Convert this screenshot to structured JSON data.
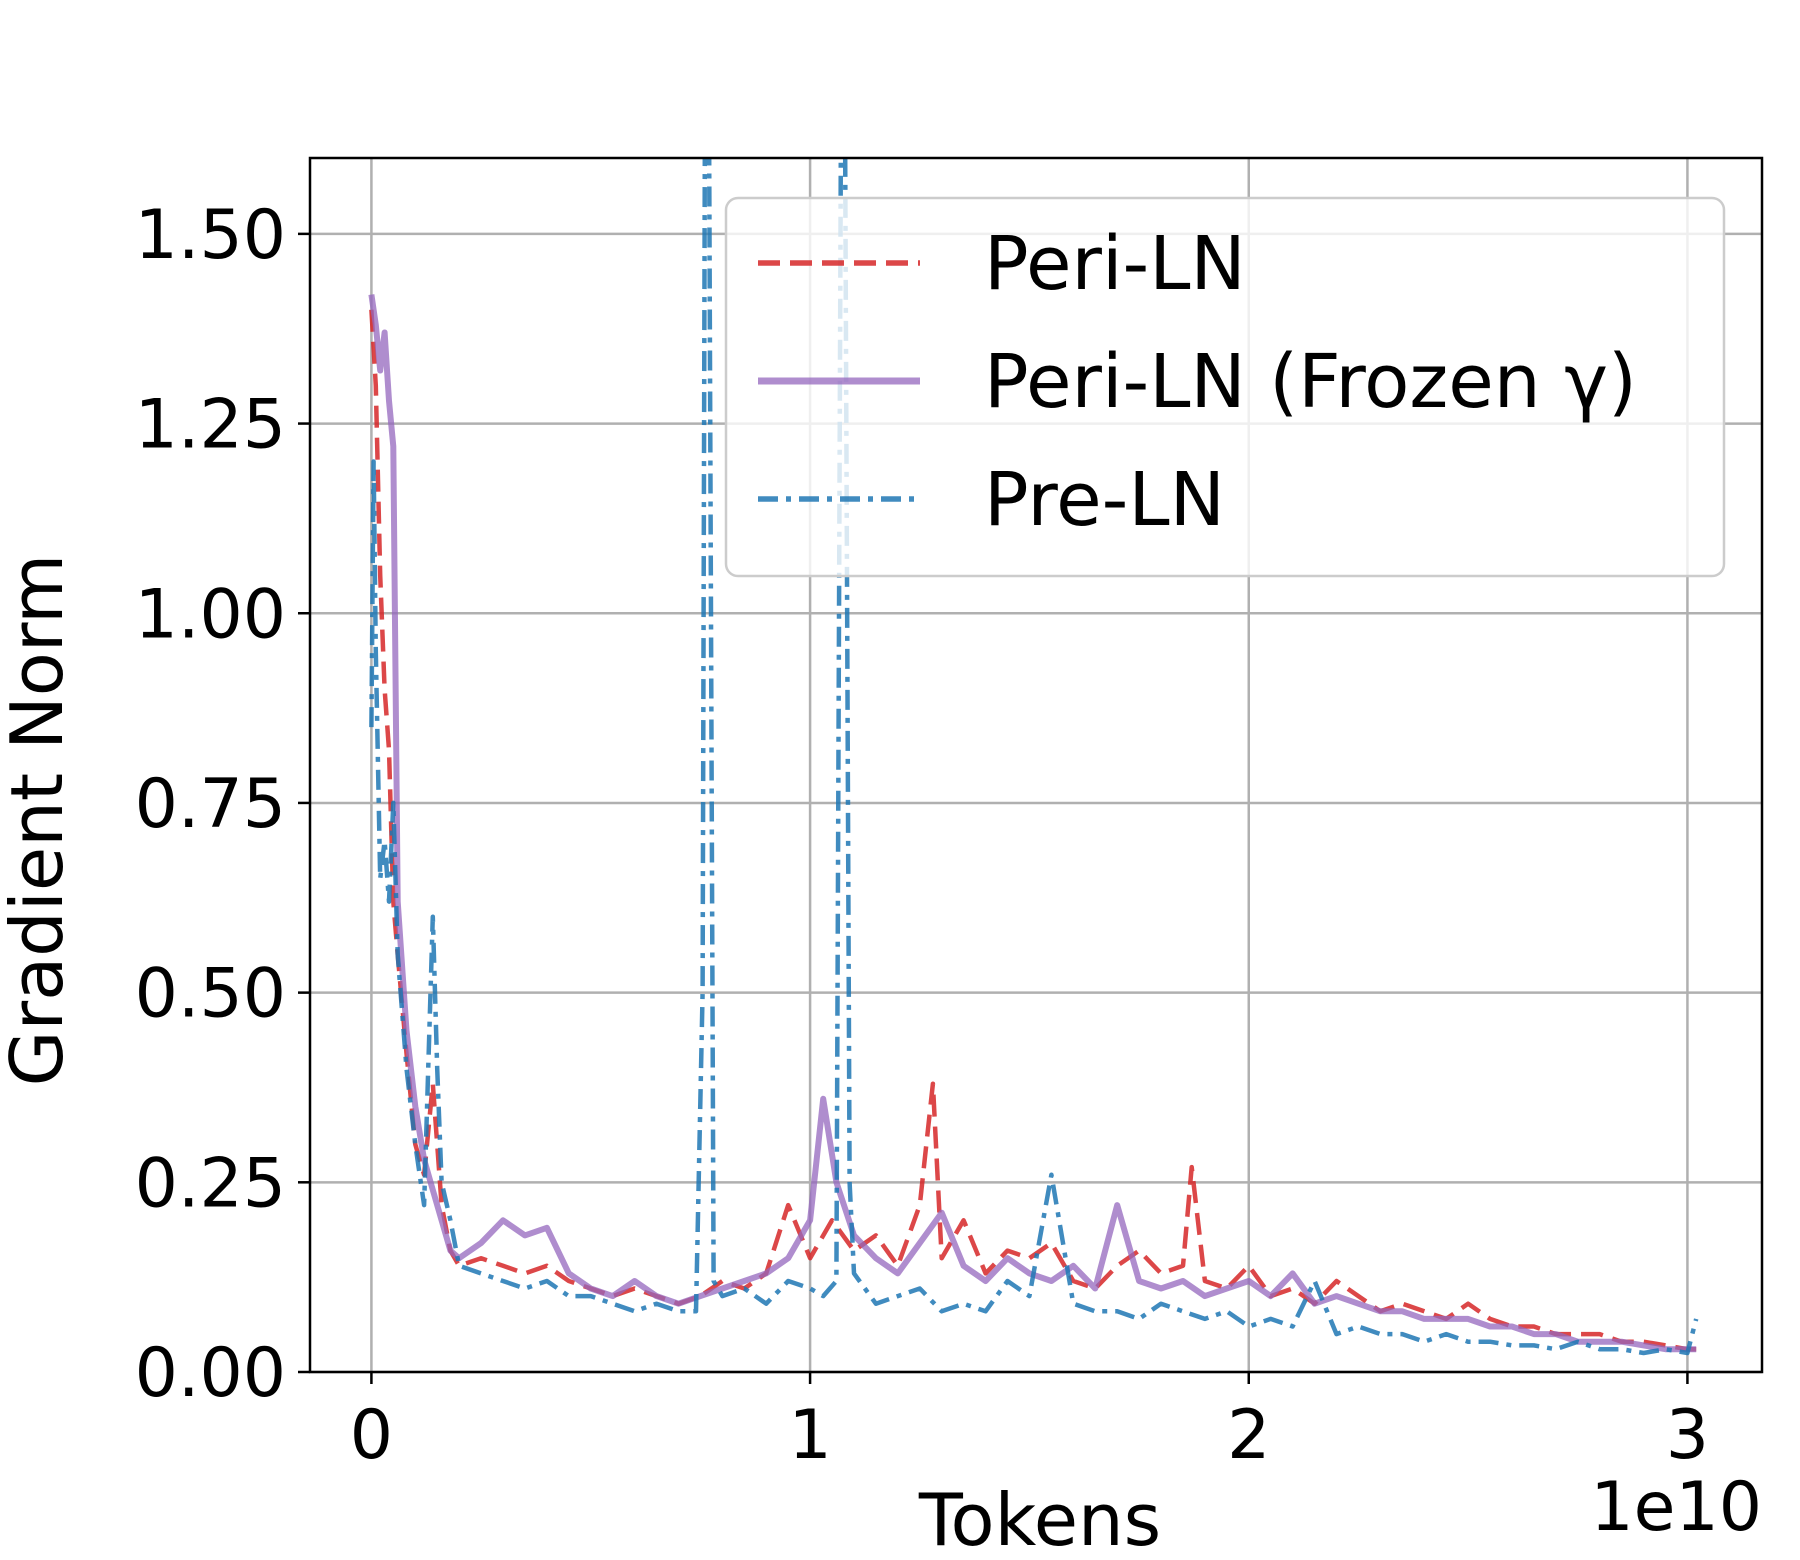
{
  "chart_data": {
    "type": "line",
    "title": "",
    "xlabel": "Tokens",
    "ylabel": "Gradient Norm",
    "x_offset_label": "1e10",
    "xlim": [
      -0.14,
      3.17
    ],
    "ylim": [
      0.0,
      1.6
    ],
    "xticks": [
      0,
      1,
      2,
      3
    ],
    "xtick_labels": [
      "0",
      "1",
      "2",
      "3"
    ],
    "yticks": [
      0.0,
      0.25,
      0.5,
      0.75,
      1.0,
      1.25,
      1.5
    ],
    "ytick_labels": [
      "0.00",
      "0.25",
      "0.50",
      "0.75",
      "1.00",
      "1.25",
      "1.50"
    ],
    "grid": true,
    "legend_position": "top-right",
    "series": [
      {
        "name": "Peri-LN",
        "color": "#d62728",
        "dash": "dashed",
        "x": [
          0.0,
          0.01,
          0.02,
          0.03,
          0.04,
          0.05,
          0.06,
          0.08,
          0.1,
          0.12,
          0.14,
          0.16,
          0.18,
          0.2,
          0.25,
          0.3,
          0.35,
          0.4,
          0.45,
          0.5,
          0.55,
          0.6,
          0.65,
          0.7,
          0.75,
          0.8,
          0.85,
          0.9,
          0.95,
          1.0,
          1.05,
          1.1,
          1.15,
          1.2,
          1.25,
          1.28,
          1.3,
          1.35,
          1.4,
          1.45,
          1.5,
          1.55,
          1.6,
          1.65,
          1.7,
          1.75,
          1.8,
          1.85,
          1.87,
          1.9,
          1.95,
          2.0,
          2.05,
          2.1,
          2.15,
          2.2,
          2.25,
          2.3,
          2.35,
          2.4,
          2.45,
          2.5,
          2.55,
          2.6,
          2.65,
          2.7,
          2.75,
          2.8,
          2.85,
          2.9,
          2.95,
          3.0,
          3.02
        ],
        "y": [
          1.4,
          1.3,
          1.05,
          0.9,
          0.82,
          0.62,
          0.55,
          0.42,
          0.3,
          0.26,
          0.38,
          0.22,
          0.16,
          0.14,
          0.15,
          0.14,
          0.13,
          0.14,
          0.12,
          0.11,
          0.1,
          0.11,
          0.1,
          0.09,
          0.1,
          0.12,
          0.11,
          0.13,
          0.22,
          0.15,
          0.2,
          0.16,
          0.18,
          0.14,
          0.22,
          0.38,
          0.15,
          0.2,
          0.13,
          0.16,
          0.15,
          0.17,
          0.12,
          0.11,
          0.14,
          0.16,
          0.13,
          0.14,
          0.27,
          0.12,
          0.11,
          0.14,
          0.1,
          0.11,
          0.09,
          0.12,
          0.1,
          0.08,
          0.09,
          0.08,
          0.07,
          0.09,
          0.07,
          0.06,
          0.06,
          0.05,
          0.05,
          0.05,
          0.04,
          0.04,
          0.035,
          0.03,
          0.03
        ]
      },
      {
        "name": "Peri-LN (Frozen γ)",
        "color": "#9467bd",
        "dash": "solid",
        "x": [
          0.0,
          0.01,
          0.02,
          0.03,
          0.04,
          0.05,
          0.06,
          0.08,
          0.1,
          0.12,
          0.14,
          0.16,
          0.18,
          0.2,
          0.25,
          0.3,
          0.35,
          0.4,
          0.45,
          0.5,
          0.55,
          0.6,
          0.65,
          0.7,
          0.75,
          0.8,
          0.85,
          0.9,
          0.95,
          1.0,
          1.03,
          1.06,
          1.1,
          1.15,
          1.2,
          1.25,
          1.3,
          1.35,
          1.4,
          1.45,
          1.5,
          1.55,
          1.6,
          1.65,
          1.7,
          1.75,
          1.8,
          1.85,
          1.9,
          1.95,
          2.0,
          2.05,
          2.1,
          2.15,
          2.2,
          2.25,
          2.3,
          2.35,
          2.4,
          2.45,
          2.5,
          2.55,
          2.6,
          2.65,
          2.7,
          2.75,
          2.8,
          2.85,
          2.9,
          2.95,
          3.0,
          3.02
        ],
        "y": [
          1.42,
          1.38,
          1.32,
          1.37,
          1.28,
          1.22,
          0.62,
          0.45,
          0.35,
          0.28,
          0.24,
          0.2,
          0.16,
          0.15,
          0.17,
          0.2,
          0.18,
          0.19,
          0.13,
          0.11,
          0.1,
          0.12,
          0.1,
          0.09,
          0.1,
          0.11,
          0.12,
          0.13,
          0.15,
          0.2,
          0.36,
          0.25,
          0.18,
          0.15,
          0.13,
          0.17,
          0.21,
          0.14,
          0.12,
          0.15,
          0.13,
          0.12,
          0.14,
          0.11,
          0.22,
          0.12,
          0.11,
          0.12,
          0.1,
          0.11,
          0.12,
          0.1,
          0.13,
          0.09,
          0.1,
          0.09,
          0.08,
          0.08,
          0.07,
          0.07,
          0.07,
          0.06,
          0.06,
          0.05,
          0.05,
          0.04,
          0.04,
          0.04,
          0.035,
          0.03,
          0.03,
          0.03
        ]
      },
      {
        "name": "Pre-LN",
        "color": "#1f77b4",
        "dash": "dashdot",
        "x": [
          0.0,
          0.005,
          0.01,
          0.02,
          0.03,
          0.04,
          0.05,
          0.06,
          0.08,
          0.1,
          0.12,
          0.14,
          0.15,
          0.16,
          0.18,
          0.2,
          0.25,
          0.3,
          0.35,
          0.4,
          0.45,
          0.5,
          0.55,
          0.6,
          0.65,
          0.7,
          0.74,
          0.755,
          0.76,
          0.77,
          0.78,
          0.8,
          0.85,
          0.9,
          0.95,
          1.0,
          1.03,
          1.06,
          1.07,
          1.08,
          1.09,
          1.1,
          1.15,
          1.2,
          1.25,
          1.3,
          1.35,
          1.4,
          1.45,
          1.5,
          1.55,
          1.6,
          1.65,
          1.7,
          1.75,
          1.8,
          1.85,
          1.9,
          1.95,
          2.0,
          2.05,
          2.1,
          2.15,
          2.2,
          2.25,
          2.3,
          2.35,
          2.4,
          2.45,
          2.5,
          2.55,
          2.6,
          2.65,
          2.7,
          2.75,
          2.8,
          2.85,
          2.9,
          2.95,
          3.0,
          3.02
        ],
        "y": [
          0.85,
          1.2,
          0.95,
          0.65,
          0.7,
          0.62,
          0.75,
          0.55,
          0.4,
          0.3,
          0.22,
          0.6,
          0.4,
          0.25,
          0.2,
          0.14,
          0.13,
          0.12,
          0.11,
          0.12,
          0.1,
          0.1,
          0.09,
          0.08,
          0.09,
          0.08,
          0.08,
          0.5,
          1.6,
          1.6,
          0.12,
          0.1,
          0.11,
          0.09,
          0.12,
          0.11,
          0.1,
          0.12,
          1.6,
          1.6,
          0.25,
          0.13,
          0.09,
          0.1,
          0.11,
          0.08,
          0.09,
          0.08,
          0.12,
          0.1,
          0.26,
          0.09,
          0.08,
          0.08,
          0.07,
          0.09,
          0.08,
          0.07,
          0.08,
          0.06,
          0.07,
          0.06,
          0.12,
          0.05,
          0.06,
          0.05,
          0.05,
          0.04,
          0.05,
          0.04,
          0.04,
          0.035,
          0.035,
          0.03,
          0.04,
          0.03,
          0.03,
          0.025,
          0.03,
          0.025,
          0.07
        ]
      }
    ]
  }
}
